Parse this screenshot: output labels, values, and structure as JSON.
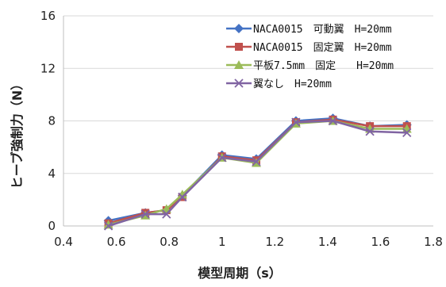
{
  "chart_data": {
    "type": "line",
    "title": "",
    "xlabel": "模型周期（s）",
    "ylabel": "ヒーブ強制力（N）",
    "xlim": [
      0.4,
      1.8
    ],
    "ylim": [
      0,
      16
    ],
    "xticks": [
      "0.4",
      "0.6",
      "0.8",
      "1",
      "1.2",
      "1.4",
      "1.6",
      "1.8"
    ],
    "yticks": [
      "0",
      "4",
      "8",
      "12",
      "16"
    ],
    "grid": "horizontal",
    "legend_position": "top-right",
    "series": [
      {
        "name": "NACA0015　可動翼　H=20mm",
        "color": "#4472C4",
        "marker": "diamond",
        "x": [
          0.57,
          0.71,
          0.79,
          0.85,
          1.0,
          1.13,
          1.28,
          1.42,
          1.56,
          1.7
        ],
        "y": [
          0.4,
          1.0,
          1.2,
          2.3,
          5.4,
          5.1,
          8.0,
          8.2,
          7.6,
          7.7
        ]
      },
      {
        "name": "NACA0015　固定翼　H=20mm",
        "color": "#C0504D",
        "marker": "square",
        "x": [
          0.57,
          0.71,
          0.79,
          0.85,
          1.0,
          1.13,
          1.28,
          1.42,
          1.56,
          1.7
        ],
        "y": [
          0.2,
          1.0,
          1.2,
          2.2,
          5.3,
          5.0,
          7.9,
          8.1,
          7.6,
          7.6
        ]
      },
      {
        "name": "平板7.5mm　固定　　H=20mm",
        "color": "#9BBB59",
        "marker": "triangle",
        "x": [
          0.57,
          0.71,
          0.79,
          0.85,
          1.0,
          1.13,
          1.28,
          1.42,
          1.56,
          1.7
        ],
        "y": [
          0.1,
          0.8,
          1.3,
          2.4,
          5.2,
          4.8,
          7.8,
          8.0,
          7.4,
          7.4
        ]
      },
      {
        "name": "翼なし　H=20mm",
        "color": "#8064A2",
        "marker": "x",
        "x": [
          0.57,
          0.71,
          0.79,
          0.85,
          1.0,
          1.13,
          1.28,
          1.42,
          1.56,
          1.7
        ],
        "y": [
          0.0,
          0.9,
          0.9,
          2.2,
          5.2,
          4.9,
          7.9,
          8.0,
          7.2,
          7.1
        ]
      }
    ]
  }
}
